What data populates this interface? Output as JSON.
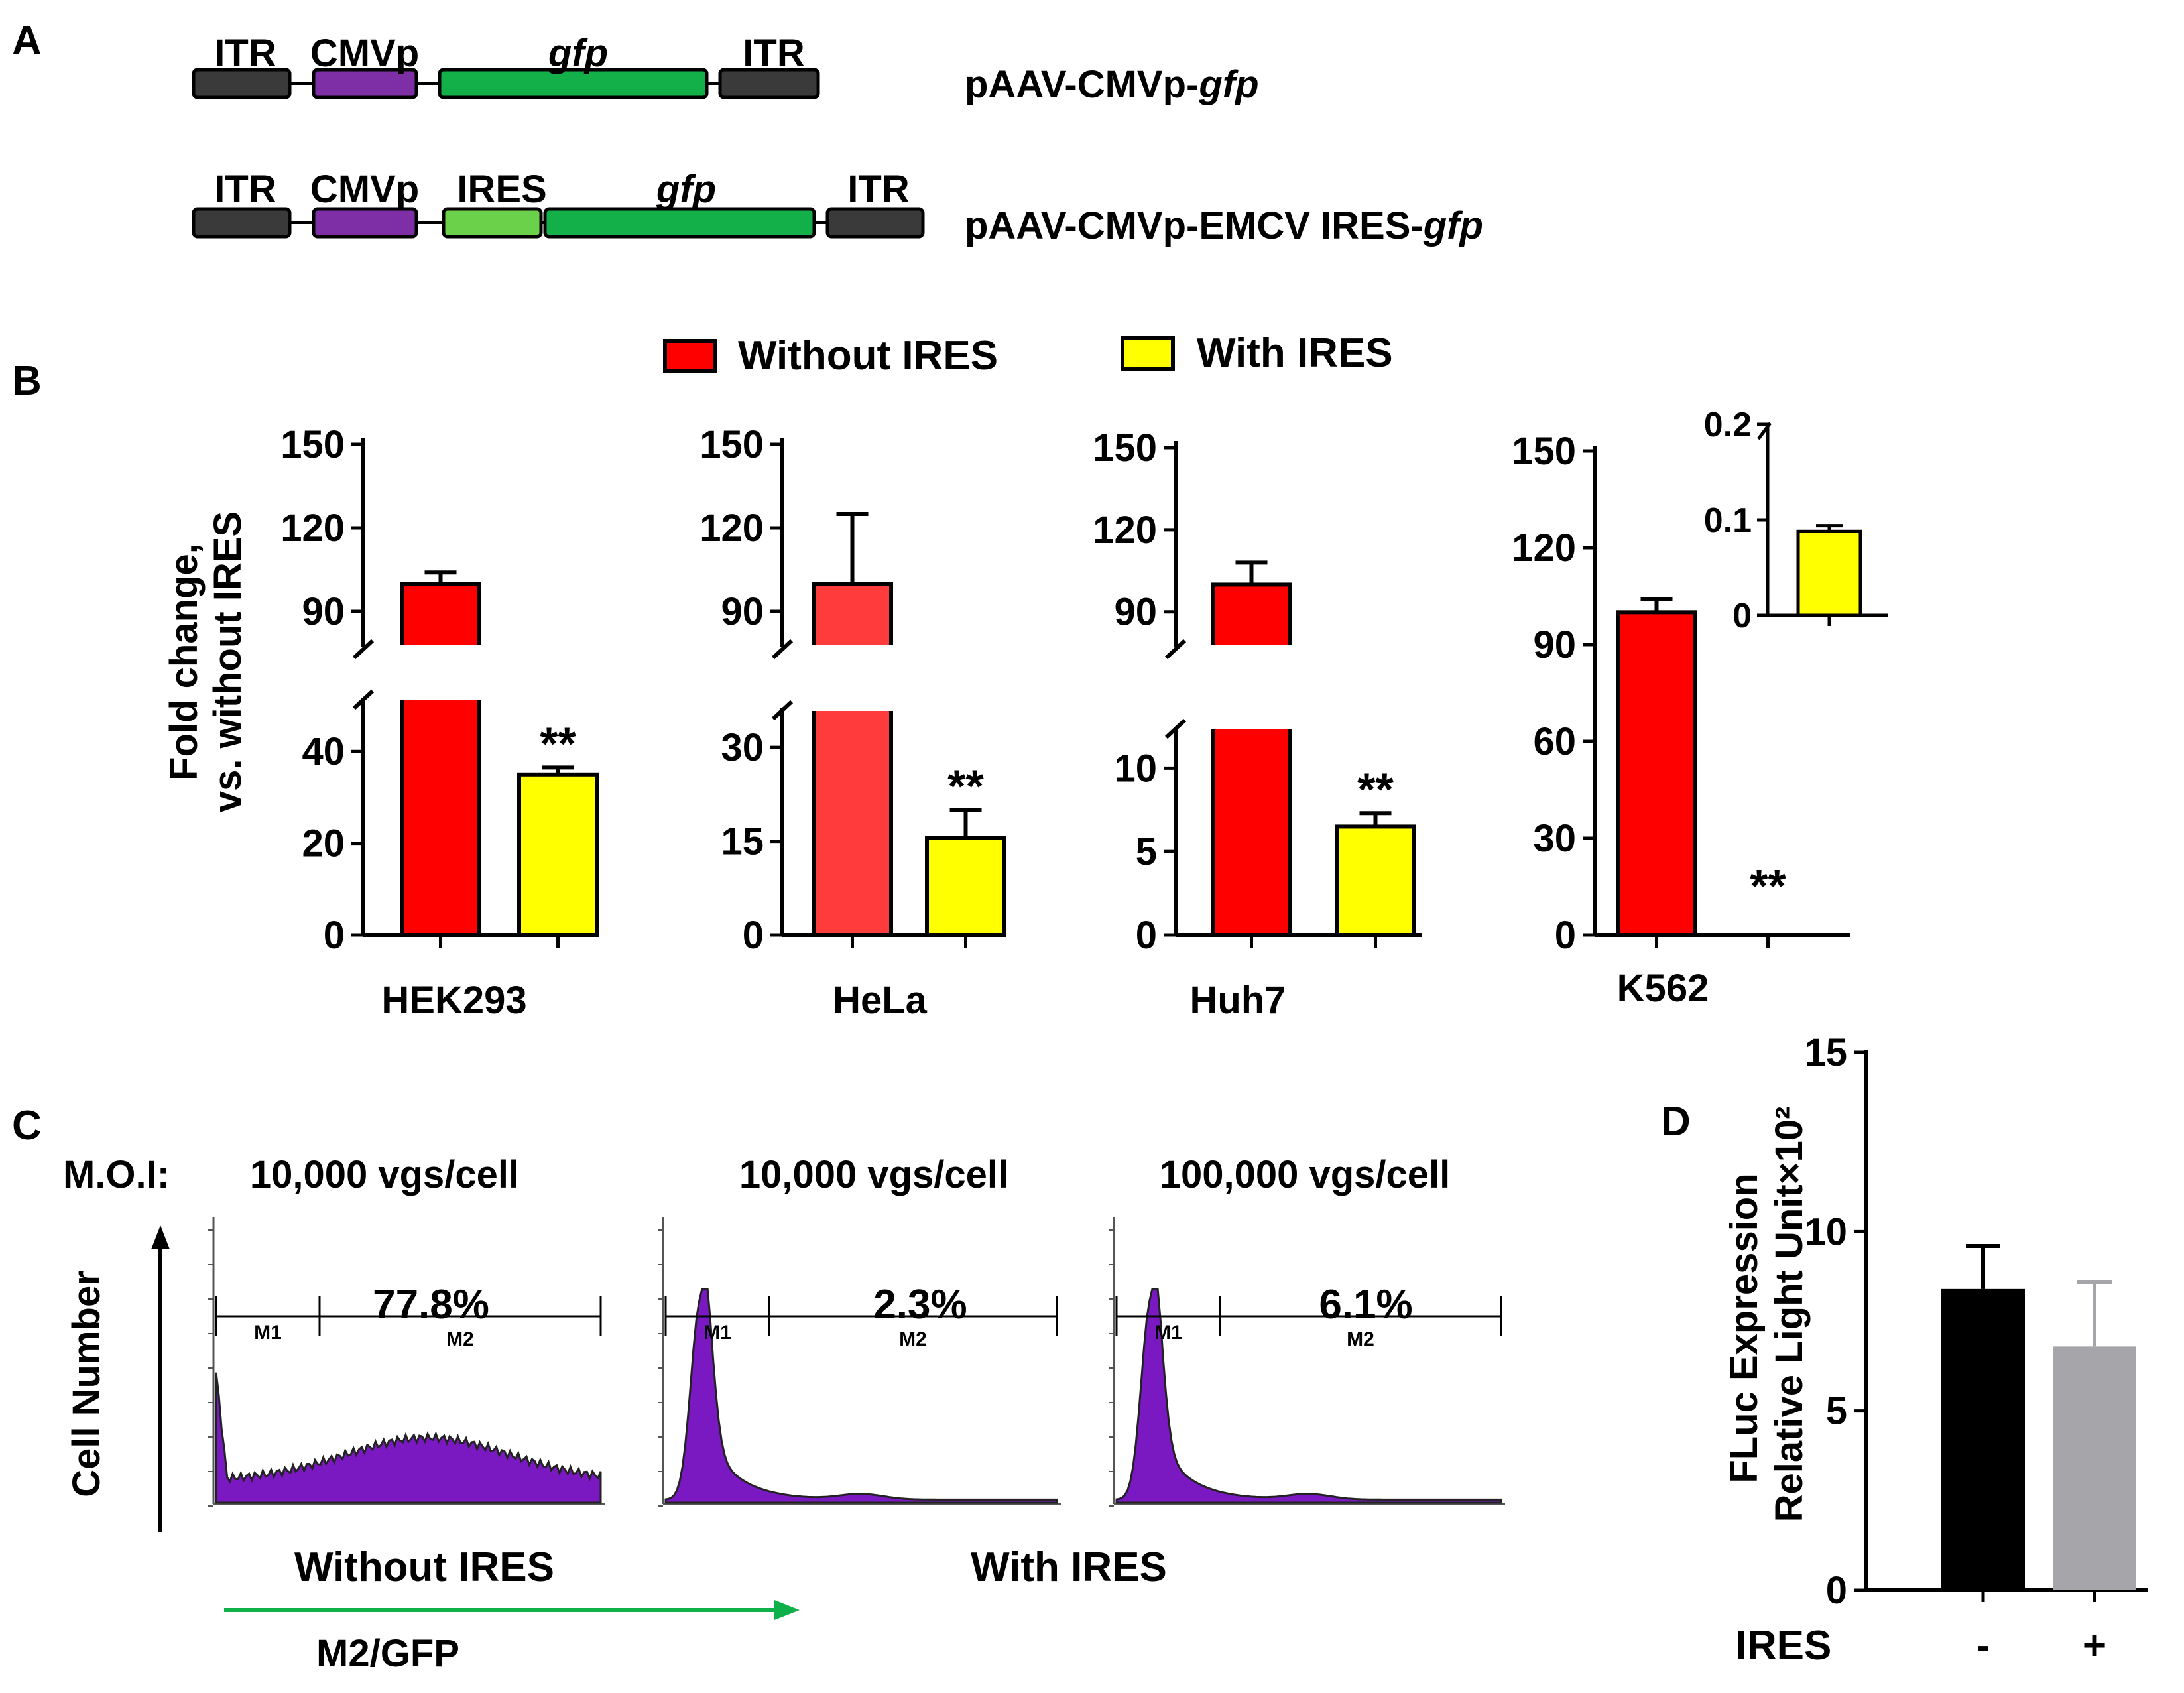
{
  "panel_labels": {
    "a": "A",
    "b": "B",
    "c": "C",
    "d": "D"
  },
  "constructs": [
    {
      "name_prefix": "pAAV-CMVp-",
      "name_italic": "gfp",
      "elements": [
        {
          "label": "ITR",
          "italic": false,
          "color": "#3a3a3a"
        },
        {
          "label": "CMVp",
          "italic": false,
          "color": "#7f2fa6"
        },
        {
          "label": "gfp",
          "italic": true,
          "color": "#13b04a"
        },
        {
          "label": "ITR",
          "italic": false,
          "color": "#3a3a3a"
        }
      ]
    },
    {
      "name_prefix": "pAAV-CMVp-EMCV IRES-",
      "name_italic": "gfp",
      "elements": [
        {
          "label": "ITR",
          "italic": false,
          "color": "#3a3a3a"
        },
        {
          "label": "CMVp",
          "italic": false,
          "color": "#7f2fa6"
        },
        {
          "label": "IRES",
          "italic": false,
          "color": "#6bd14a"
        },
        {
          "label": "gfp",
          "italic": true,
          "color": "#13b04a"
        },
        {
          "label": "ITR",
          "italic": false,
          "color": "#3a3a3a"
        }
      ]
    }
  ],
  "legend": [
    {
      "label": "Without IRES",
      "color": "#ff0000"
    },
    {
      "label": "With IRES",
      "color": "#ffff00"
    }
  ],
  "ylabel_b": [
    "Fold change,",
    "vs. without IRES"
  ],
  "sig_marker": "**",
  "chart_data": [
    {
      "type": "bar",
      "cell": "HEK293",
      "broken_axis": true,
      "categories": [
        "Without IRES",
        "With IRES"
      ],
      "values": [
        100,
        35
      ],
      "errors": [
        4,
        1.5
      ],
      "colors": [
        "#ff0000",
        "#ffff00"
      ],
      "lower_range": [
        0,
        50
      ],
      "upper_range": [
        80,
        150
      ],
      "lower_ticks": [
        "0",
        "20",
        "40"
      ],
      "upper_ticks": [
        "90",
        "120",
        "150"
      ],
      "significance": [
        false,
        true
      ]
    },
    {
      "type": "bar",
      "cell": "HeLa",
      "broken_axis": true,
      "categories": [
        "Without IRES",
        "With IRES"
      ],
      "values": [
        100,
        15.5
      ],
      "errors": [
        25,
        4.5
      ],
      "colors": [
        "#ff3b3b",
        "#ffff00"
      ],
      "lower_range": [
        0,
        35
      ],
      "upper_range": [
        80,
        150
      ],
      "lower_ticks": [
        "0",
        "15",
        "30"
      ],
      "upper_ticks": [
        "90",
        "120",
        "150"
      ],
      "significance": [
        false,
        true
      ]
    },
    {
      "type": "bar",
      "cell": "Huh7",
      "broken_axis": true,
      "categories": [
        "Without IRES",
        "With IRES"
      ],
      "values": [
        100,
        6.5
      ],
      "errors": [
        8,
        0.8
      ],
      "colors": [
        "#ff0000",
        "#ffff00"
      ],
      "lower_range": [
        0,
        12
      ],
      "upper_range": [
        80,
        150
      ],
      "lower_ticks": [
        "0",
        "5",
        "10"
      ],
      "upper_ticks": [
        "90",
        "120",
        "150"
      ],
      "significance": [
        false,
        true
      ]
    },
    {
      "type": "bar",
      "cell": "K562",
      "broken_axis": false,
      "categories": [
        "Without IRES",
        "With IRES"
      ],
      "values": [
        100,
        0.088
      ],
      "errors": [
        4,
        0.006
      ],
      "colors": [
        "#ff0000",
        "#ffff00"
      ],
      "ylim": [
        0,
        150
      ],
      "ticks": [
        "0",
        "30",
        "60",
        "90",
        "120",
        "150"
      ],
      "significance": [
        false,
        true
      ],
      "inset": {
        "ylim": [
          0,
          0.2
        ],
        "ticks": [
          "0",
          "0.1",
          "0.2"
        ],
        "value": 0.088,
        "error": 0.006,
        "color": "#ffff00"
      }
    },
    {
      "type": "bar",
      "panel": "D",
      "categories": [
        "-",
        "+"
      ],
      "xlabel": "IRES",
      "values": [
        8.4,
        6.8
      ],
      "errors": [
        1.2,
        1.8
      ],
      "colors": [
        "#000000",
        "#a5a5aa"
      ],
      "ylim": [
        0,
        15
      ],
      "ticks": [
        "0",
        "5",
        "10",
        "15"
      ],
      "ylabel": [
        "FLuc Expression",
        "Relative  Light Unit×10²"
      ]
    }
  ],
  "flow": {
    "moi_label": "M.O.I:",
    "y_axis_label": "Cell Number",
    "x_axis_label": "M2/GFP",
    "group_without": "Without IRES",
    "group_with": "With IRES",
    "gate_labels": [
      "M1",
      "M2"
    ],
    "histograms": [
      {
        "moi": "10,000 vgs/cell",
        "percent": "77.8%",
        "shape": "broad"
      },
      {
        "moi": "10,000 vgs/cell",
        "percent": "2.3%",
        "shape": "peak"
      },
      {
        "moi": "100,000 vgs/cell",
        "percent": "6.1%",
        "shape": "peak"
      }
    ]
  },
  "colors": {
    "red_title": "#e8141b",
    "green_arrow": "#0fb04a",
    "histogram_fill": "#7a18c2"
  }
}
